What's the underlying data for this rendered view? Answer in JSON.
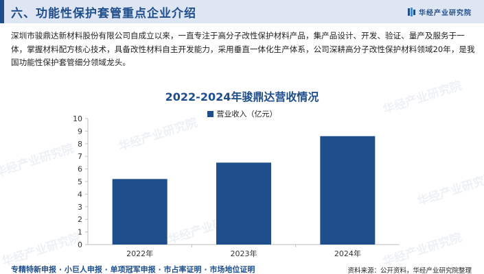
{
  "header": {
    "title": "六、功能性保护套管重点企业介绍",
    "brand": "华经产业研究院",
    "brand_color": "#1f4e8c",
    "logo_icon": "brand-logo-icon"
  },
  "intro": {
    "text": "深圳市骏鼎达新材料股份有限公司自成立以来，一直专注于高分子改性保护材料产品，集产品设计、开发、验证、量产及服务于一体，掌握材料配方核心技术，具备改性材料自主开发能力，采用垂直一体化生产体系，公司深耕高分子改性保护材料领域20年，是我国功能性保护套管细分领域龙头。"
  },
  "watermark": "华经产业研究院",
  "chart_data": {
    "type": "bar",
    "title": "2022-2024年骏鼎达营收情况",
    "categories": [
      "2022年",
      "2023年",
      "2024年"
    ],
    "series": [
      {
        "name": "营业收入（亿元）",
        "values": [
          5.2,
          6.5,
          8.6
        ],
        "color": "#1f4e8c"
      }
    ],
    "ylim": [
      0,
      10
    ],
    "yticks": [
      0,
      1,
      2,
      3,
      4,
      5,
      6,
      7,
      8,
      9,
      10
    ],
    "grid": false,
    "legend_position": "top-center",
    "xlabel": "",
    "ylabel": ""
  },
  "footer": {
    "left": "专精特新申报 · 小巨人申报 · 单项冠军申报 · 市占率证明 · 市场地位证明",
    "right": "资料来源：公开资料，华经产业研究院整理"
  }
}
